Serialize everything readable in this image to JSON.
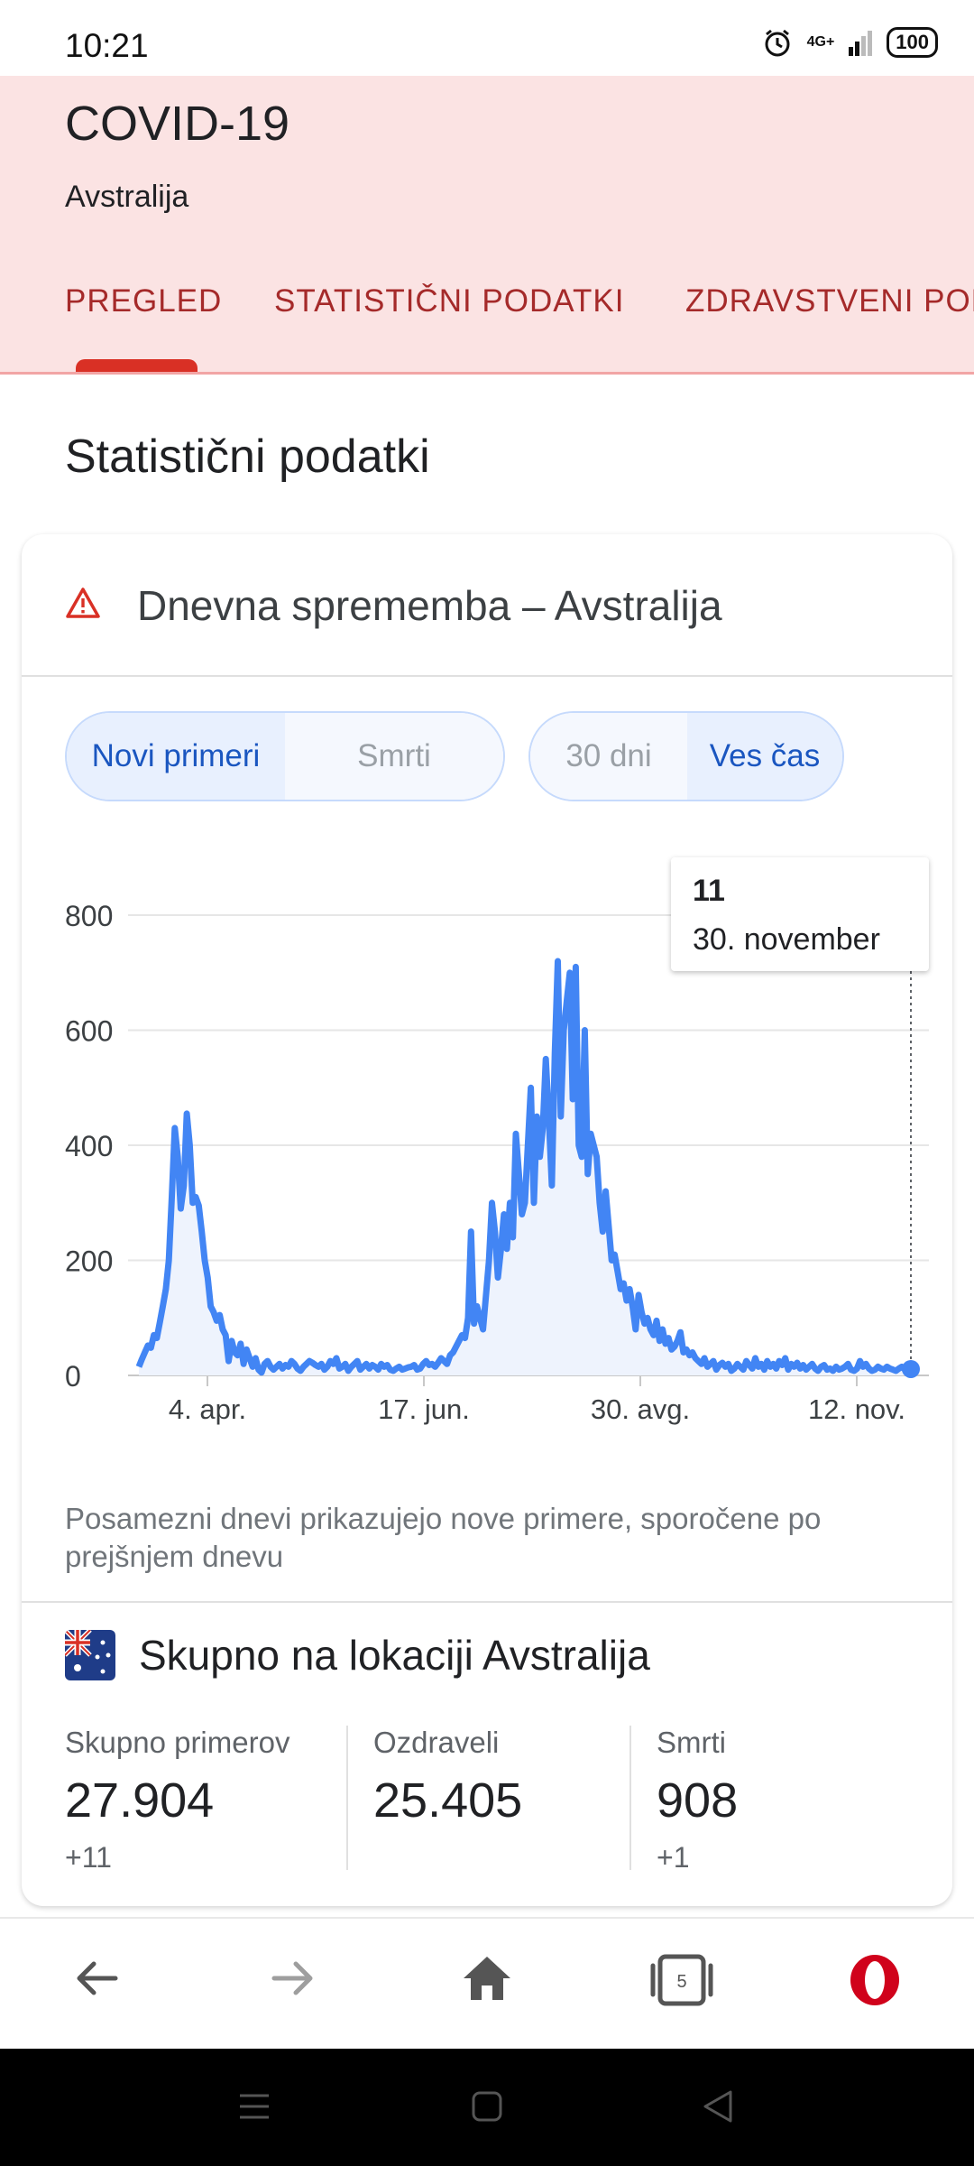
{
  "status_bar": {
    "time": "10:21",
    "network": "4G+",
    "battery": "100",
    "icons": [
      "alarm-icon",
      "signal-icon",
      "battery-icon"
    ]
  },
  "header": {
    "title": "COVID-19",
    "subtitle": "Avstralija",
    "tabs": [
      {
        "label": "PREGLED",
        "active": true
      },
      {
        "label": "STATISTIČNI PODATKI",
        "active": false
      },
      {
        "label": "ZDRAVSTVENI POD",
        "active": false
      }
    ]
  },
  "section_title": "Statistični podatki",
  "card": {
    "title": "Dnevna sprememba – Avstralija",
    "metric_toggle": {
      "options": [
        "Novi primeri",
        "Smrti"
      ],
      "selected": "Novi primeri"
    },
    "range_toggle": {
      "options": [
        "30 dni",
        "Ves čas"
      ],
      "selected": "Ves čas"
    },
    "tooltip": {
      "value": "11",
      "date": "30. november"
    },
    "note": "Posamezni dnevi prikazujejo nove primere, sporočene po prejšnjem dnevu",
    "location_title": "Skupno na lokaciji Avstralija",
    "stats": [
      {
        "label": "Skupno primerov",
        "value": "27.904",
        "delta": "+11"
      },
      {
        "label": "Ozdraveli",
        "value": "25.405",
        "delta": ""
      },
      {
        "label": "Smrti",
        "value": "908",
        "delta": "+1"
      }
    ]
  },
  "chart_data": {
    "type": "area",
    "ylim": [
      0,
      800
    ],
    "yticks": [
      "0",
      "200",
      "400",
      "600",
      "800"
    ],
    "xticks": [
      "4. apr.",
      "17. jun.",
      "30. avg.",
      "12. nov."
    ],
    "series": [
      {
        "values": [
          15,
          28,
          40,
          52,
          48,
          70,
          65,
          92,
          120,
          150,
          200,
          310,
          430,
          380,
          290,
          330,
          455,
          400,
          300,
          310,
          295,
          250,
          200,
          170,
          120,
          110,
          95,
          105,
          80,
          70,
          25,
          60,
          40,
          35,
          55,
          20,
          45,
          30,
          15,
          30,
          10,
          5,
          20,
          25,
          15,
          10,
          15,
          20,
          12,
          18,
          15,
          25,
          20,
          12,
          8,
          15,
          20,
          25,
          22,
          18,
          15,
          20,
          10,
          15,
          25,
          20,
          30,
          12,
          15,
          20,
          8,
          15,
          20,
          25,
          10,
          15,
          20,
          12,
          18,
          15,
          10,
          20,
          15,
          18,
          10,
          8,
          12,
          15,
          10,
          12,
          14,
          15,
          18,
          10,
          12,
          20,
          25,
          18,
          20,
          15,
          22,
          30,
          25,
          20,
          35,
          40,
          50,
          60,
          70,
          65,
          100,
          250,
          90,
          120,
          100,
          80,
          140,
          200,
          300,
          250,
          170,
          220,
          280,
          220,
          300,
          240,
          420,
          350,
          280,
          300,
          400,
          500,
          300,
          450,
          380,
          430,
          550,
          450,
          330,
          560,
          720,
          450,
          600,
          650,
          700,
          480,
          710,
          400,
          380,
          600,
          350,
          420,
          400,
          380,
          300,
          250,
          320,
          260,
          200,
          210,
          180,
          150,
          160,
          130,
          150,
          120,
          80,
          140,
          110,
          90,
          100,
          80,
          70,
          95,
          60,
          80,
          55,
          65,
          45,
          50,
          60,
          75,
          40,
          45,
          35,
          40,
          30,
          25,
          20,
          30,
          15,
          20,
          25,
          10,
          18,
          22,
          15,
          20,
          8,
          12,
          20,
          15,
          10,
          25,
          18,
          12,
          30,
          15,
          20,
          10,
          25,
          15,
          20,
          12,
          25,
          18,
          30,
          10,
          20,
          15,
          22,
          12,
          18,
          10,
          15,
          20,
          12,
          8,
          15,
          18,
          10,
          12,
          8,
          15,
          10,
          12,
          15,
          20,
          10,
          8,
          12,
          25,
          15,
          20,
          12,
          8,
          10,
          15,
          12,
          10,
          15,
          12,
          10,
          8,
          12,
          15,
          10,
          8,
          11
        ]
      }
    ],
    "tooltip_point": {
      "x": "30. november",
      "y": 11
    }
  }
}
